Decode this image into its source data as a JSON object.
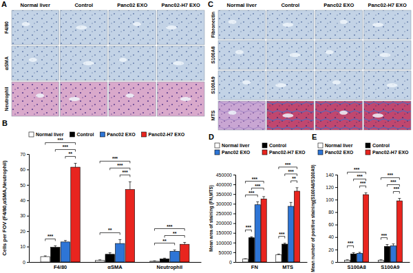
{
  "panels": [
    {
      "label": "A",
      "columns": [
        "Normal liver",
        "Control",
        "Panc02 EXO",
        "Panc02-H7 EXO"
      ],
      "rows": [
        "F4/80",
        "αSMA",
        "Neutrophil"
      ]
    },
    {
      "label": "C",
      "columns": [
        "Normal liver",
        "Control",
        "Panc02 EXO",
        "Panc02-H7 EXO"
      ],
      "rows": [
        "Fibronectin",
        "S100A8",
        "S100A9",
        "MTS"
      ]
    }
  ],
  "chart_data": [
    {
      "type": "bar",
      "title": "B",
      "ylabel": "Cells per FOV (F4/80,αSMA,Neutrophil)",
      "categories": [
        "F4/80",
        "αSMA",
        "Neutrophil"
      ],
      "series": [
        {
          "name": "Normal liver",
          "color": "#ffffff",
          "values": [
            3.5,
            1,
            0.5
          ],
          "errors": [
            0.5,
            0.4,
            0.3
          ]
        },
        {
          "name": "Control",
          "color": "#000000",
          "values": [
            9.5,
            5,
            2
          ],
          "errors": [
            1,
            1,
            0.5
          ]
        },
        {
          "name": "Panc02 EXO",
          "color": "#2e75d6",
          "values": [
            13,
            12,
            7
          ],
          "errors": [
            1,
            2.5,
            0.8
          ]
        },
        {
          "name": "Panc02-H7 EXO",
          "color": "#e8251f",
          "values": [
            61.5,
            47,
            11.5
          ],
          "errors": [
            2.5,
            5,
            1.2
          ]
        }
      ],
      "ylim": [
        0,
        70
      ],
      "yticks": [
        0,
        10,
        20,
        30,
        40,
        50,
        60,
        70
      ],
      "grid": false,
      "legend": "top",
      "annotations": [
        {
          "text": "***",
          "category": 0,
          "from": 0,
          "to": 1
        },
        {
          "text": "**",
          "category": 0,
          "from": 2,
          "to": 3
        },
        {
          "text": "***",
          "category": 0,
          "from": 1,
          "to": 3
        },
        {
          "text": "***",
          "category": 0,
          "from": 0,
          "to": 3
        },
        {
          "text": "**",
          "category": 1,
          "from": 0,
          "to": 2
        },
        {
          "text": "***",
          "category": 1,
          "from": 2,
          "to": 3
        },
        {
          "text": "***",
          "category": 1,
          "from": 1,
          "to": 3
        },
        {
          "text": "***",
          "category": 1,
          "from": 0,
          "to": 3
        },
        {
          "text": "**",
          "category": 2,
          "from": 0,
          "to": 2
        },
        {
          "text": "**",
          "category": 2,
          "from": 1,
          "to": 3
        },
        {
          "text": "***",
          "category": 2,
          "from": 0,
          "to": 3
        }
      ]
    },
    {
      "type": "bar",
      "title": "D",
      "ylabel": "Mean area of staining (FN,MTS)",
      "categories": [
        "FN",
        "MTS"
      ],
      "series": [
        {
          "name": "Normal liver",
          "color": "#ffffff",
          "values": [
            15000,
            38000
          ],
          "errors": [
            2000,
            3000
          ]
        },
        {
          "name": "Control",
          "color": "#000000",
          "values": [
            125000,
            92000
          ],
          "errors": [
            5000,
            5000
          ]
        },
        {
          "name": "Panc02 EXO",
          "color": "#2e75d6",
          "values": [
            295000,
            287000
          ],
          "errors": [
            15000,
            20000
          ]
        },
        {
          "name": "Panc02-H7 EXO",
          "color": "#e8251f",
          "values": [
            325000,
            365000
          ],
          "errors": [
            12000,
            18000
          ]
        }
      ],
      "ylim": [
        0,
        450000
      ],
      "yticks": [
        0,
        50000,
        100000,
        150000,
        200000,
        250000,
        300000,
        350000,
        400000,
        450000
      ],
      "grid": false,
      "legend": "top",
      "annotations": [
        {
          "text": "***",
          "category": 0,
          "from": 0,
          "to": 1
        },
        {
          "text": "***",
          "category": 0,
          "from": 0,
          "to": 2
        },
        {
          "text": "***",
          "category": 0,
          "from": 1,
          "to": 3
        },
        {
          "text": "***",
          "category": 0,
          "from": 0,
          "to": 3
        },
        {
          "text": "***",
          "category": 1,
          "from": 0,
          "to": 1
        },
        {
          "text": "**",
          "category": 1,
          "from": 2,
          "to": 3
        },
        {
          "text": "***",
          "category": 1,
          "from": 1,
          "to": 3
        },
        {
          "text": "***",
          "category": 1,
          "from": 0,
          "to": 3
        }
      ]
    },
    {
      "type": "bar",
      "title": "E",
      "ylabel": "Mean number of positive staining(S100A8/S100A9)",
      "categories": [
        "S100A8",
        "S100A9"
      ],
      "series": [
        {
          "name": "Normal liver",
          "color": "#ffffff",
          "values": [
            3,
            3
          ],
          "errors": [
            0.5,
            0.5
          ]
        },
        {
          "name": "Control",
          "color": "#000000",
          "values": [
            13,
            25
          ],
          "errors": [
            2,
            3
          ]
        },
        {
          "name": "Panc02 EXO",
          "color": "#2e75d6",
          "values": [
            14,
            26
          ],
          "errors": [
            1.5,
            3
          ]
        },
        {
          "name": "Panc02-H7 EXO",
          "color": "#e8251f",
          "values": [
            108,
            98
          ],
          "errors": [
            3,
            4
          ]
        }
      ],
      "ylim": [
        0,
        140
      ],
      "yticks": [
        0,
        20,
        40,
        60,
        80,
        100,
        120,
        140
      ],
      "grid": false,
      "legend": "top",
      "annotations": [
        {
          "text": "***",
          "category": 0,
          "from": 0,
          "to": 1
        },
        {
          "text": "***",
          "category": 0,
          "from": 2,
          "to": 3
        },
        {
          "text": "***",
          "category": 0,
          "from": 1,
          "to": 3
        },
        {
          "text": "***",
          "category": 0,
          "from": 0,
          "to": 3
        },
        {
          "text": "***",
          "category": 1,
          "from": 0,
          "to": 1
        },
        {
          "text": "***",
          "category": 1,
          "from": 2,
          "to": 3
        },
        {
          "text": "***",
          "category": 1,
          "from": 1,
          "to": 3
        },
        {
          "text": "***",
          "category": 1,
          "from": 0,
          "to": 3
        }
      ]
    }
  ]
}
